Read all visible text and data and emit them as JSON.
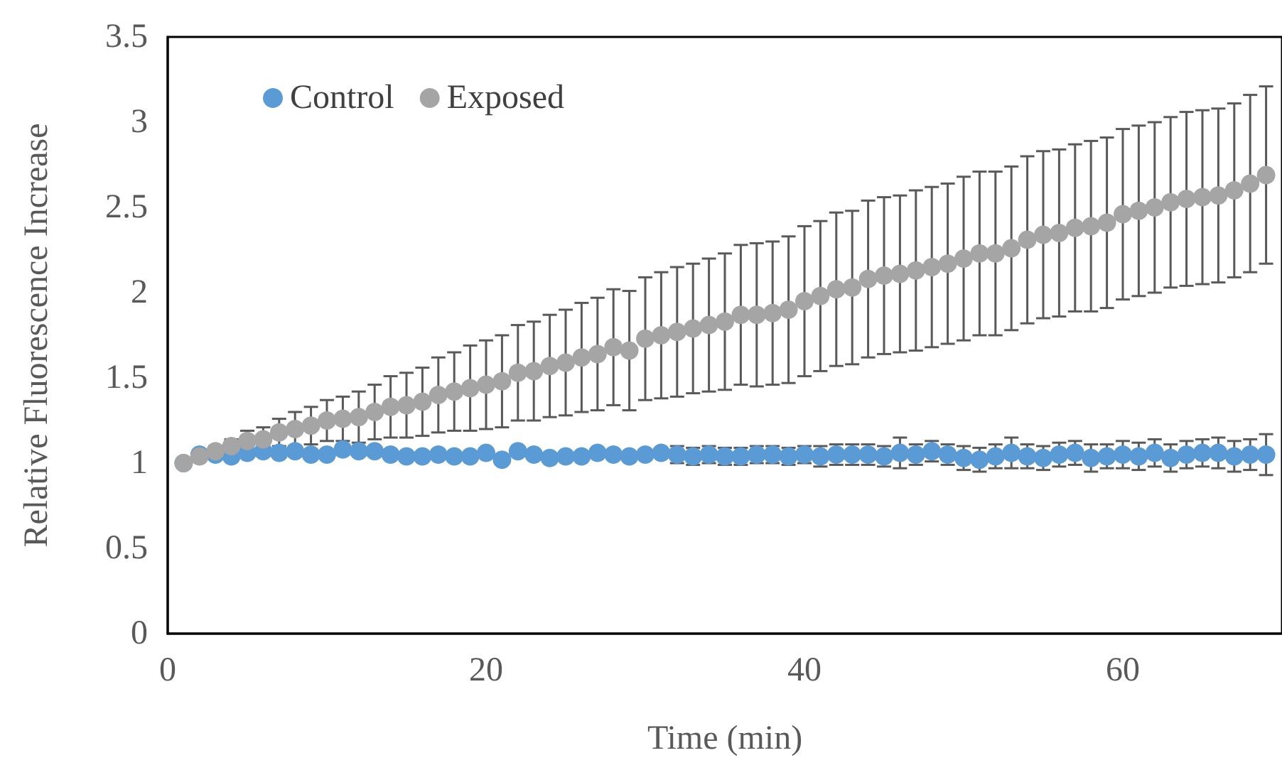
{
  "chart_data": {
    "type": "scatter",
    "xlabel": "Time (min)",
    "ylabel": "Relative Fluorescence Increase",
    "x": [
      1,
      2,
      3,
      4,
      5,
      6,
      7,
      8,
      9,
      10,
      11,
      12,
      13,
      14,
      15,
      16,
      17,
      18,
      19,
      20,
      21,
      22,
      23,
      24,
      25,
      26,
      27,
      28,
      29,
      30,
      31,
      32,
      33,
      34,
      35,
      36,
      37,
      38,
      39,
      40,
      41,
      42,
      43,
      44,
      45,
      46,
      47,
      48,
      49,
      50,
      51,
      52,
      53,
      54,
      55,
      56,
      57,
      58,
      59,
      60,
      61,
      62,
      63,
      64,
      65,
      66,
      67,
      68,
      69
    ],
    "series": [
      {
        "name": "Control",
        "color": "#5b9bd5",
        "values": [
          1.0,
          1.05,
          1.05,
          1.04,
          1.06,
          1.07,
          1.06,
          1.07,
          1.05,
          1.05,
          1.08,
          1.07,
          1.07,
          1.05,
          1.04,
          1.04,
          1.05,
          1.04,
          1.04,
          1.06,
          1.02,
          1.07,
          1.05,
          1.03,
          1.04,
          1.04,
          1.06,
          1.05,
          1.04,
          1.05,
          1.06,
          1.05,
          1.04,
          1.05,
          1.04,
          1.04,
          1.05,
          1.05,
          1.04,
          1.05,
          1.04,
          1.05,
          1.05,
          1.05,
          1.04,
          1.06,
          1.05,
          1.07,
          1.05,
          1.03,
          1.02,
          1.04,
          1.06,
          1.04,
          1.03,
          1.05,
          1.06,
          1.03,
          1.04,
          1.05,
          1.04,
          1.06,
          1.03,
          1.05,
          1.06,
          1.06,
          1.04,
          1.05,
          1.05
        ],
        "errors": [
          0.01,
          0.02,
          0.02,
          0.02,
          0.02,
          0.02,
          null,
          null,
          null,
          null,
          null,
          null,
          null,
          null,
          null,
          null,
          null,
          null,
          null,
          null,
          null,
          null,
          null,
          null,
          null,
          null,
          null,
          null,
          null,
          null,
          null,
          0.05,
          0.05,
          0.05,
          0.05,
          0.05,
          0.05,
          0.05,
          0.05,
          0.05,
          0.06,
          0.06,
          0.06,
          0.06,
          0.06,
          0.09,
          0.06,
          0.06,
          0.06,
          0.07,
          0.07,
          0.07,
          0.09,
          0.07,
          0.07,
          0.07,
          0.07,
          0.08,
          0.07,
          0.08,
          0.08,
          0.08,
          0.08,
          0.08,
          0.08,
          0.09,
          0.09,
          0.09,
          0.12
        ]
      },
      {
        "name": "Exposed",
        "color": "#a5a5a5",
        "values": [
          1.0,
          1.04,
          1.07,
          1.1,
          1.13,
          1.14,
          1.18,
          1.2,
          1.22,
          1.25,
          1.26,
          1.27,
          1.3,
          1.33,
          1.34,
          1.36,
          1.4,
          1.42,
          1.44,
          1.46,
          1.48,
          1.53,
          1.54,
          1.57,
          1.59,
          1.62,
          1.64,
          1.68,
          1.66,
          1.73,
          1.75,
          1.77,
          1.79,
          1.81,
          1.83,
          1.87,
          1.87,
          1.88,
          1.9,
          1.95,
          1.98,
          2.02,
          2.03,
          2.08,
          2.1,
          2.11,
          2.13,
          2.15,
          2.17,
          2.2,
          2.23,
          2.23,
          2.26,
          2.31,
          2.34,
          2.35,
          2.38,
          2.39,
          2.41,
          2.46,
          2.48,
          2.5,
          2.53,
          2.55,
          2.56,
          2.57,
          2.6,
          2.64,
          2.69
        ],
        "errors": [
          0.01,
          0.02,
          0.03,
          0.04,
          0.06,
          0.07,
          0.08,
          0.1,
          0.11,
          0.12,
          0.13,
          0.15,
          0.16,
          0.18,
          0.19,
          0.2,
          0.22,
          0.23,
          0.25,
          0.26,
          0.27,
          0.28,
          0.29,
          0.3,
          0.31,
          0.32,
          0.33,
          0.34,
          0.35,
          0.36,
          0.37,
          0.38,
          0.38,
          0.39,
          0.4,
          0.41,
          0.42,
          0.42,
          0.43,
          0.44,
          0.44,
          0.45,
          0.45,
          0.46,
          0.46,
          0.46,
          0.47,
          0.47,
          0.47,
          0.48,
          0.48,
          0.48,
          0.48,
          0.49,
          0.49,
          0.49,
          0.49,
          0.5,
          0.5,
          0.5,
          0.5,
          0.5,
          0.5,
          0.51,
          0.51,
          0.51,
          0.51,
          0.52,
          0.52
        ]
      }
    ],
    "xlim": [
      0,
      70
    ],
    "xticks": [
      0,
      20,
      40,
      60
    ],
    "ylim": [
      0,
      3.5
    ],
    "yticks": [
      0,
      0.5,
      1,
      1.5,
      2,
      2.5,
      3,
      3.5
    ],
    "grid": false,
    "legend": "top left",
    "marker": "circle"
  }
}
